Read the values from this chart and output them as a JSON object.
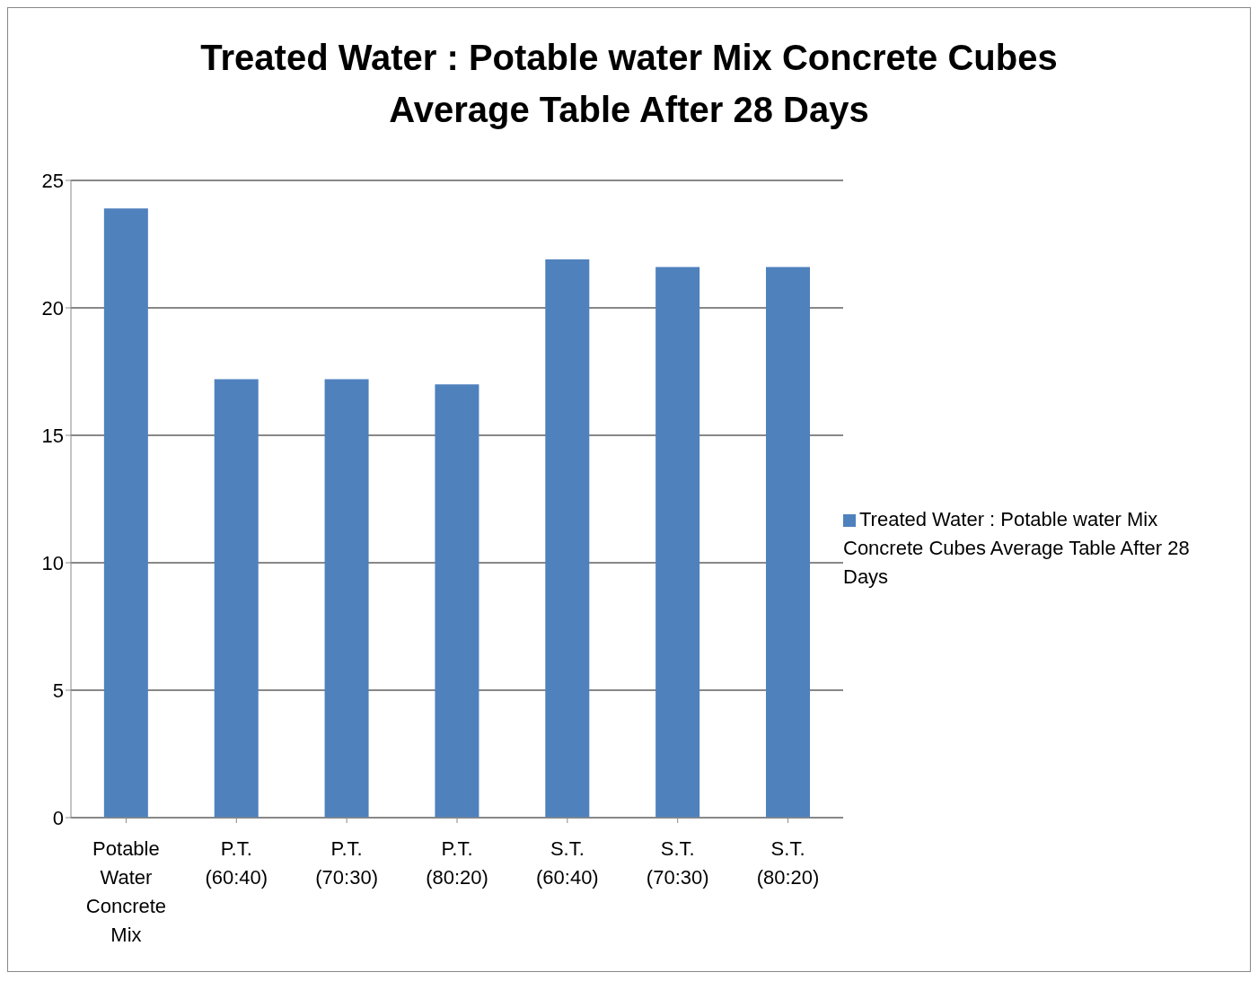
{
  "chart_data": {
    "type": "bar",
    "title": "Treated Water : Potable water Mix Concrete Cubes Average Table  After 28 Days",
    "categories": [
      "Potable Water Concrete Mix",
      "P.T. (60:40)",
      "P.T. (70:30)",
      "P.T. (80:20)",
      "S.T. (60:40)",
      "S.T. (70:30)",
      "S.T. (80:20)"
    ],
    "series": [
      {
        "name": "Treated Water : Potable water Mix Concrete Cubes Average Table  After 28 Days",
        "color": "#4f81bd",
        "values": [
          23.9,
          17.2,
          17.2,
          17.0,
          21.9,
          21.6,
          21.6
        ]
      }
    ],
    "ylim": [
      0,
      25
    ],
    "yticks": [
      0,
      5,
      10,
      15,
      20,
      25
    ],
    "grid": "y",
    "legend": "right"
  }
}
